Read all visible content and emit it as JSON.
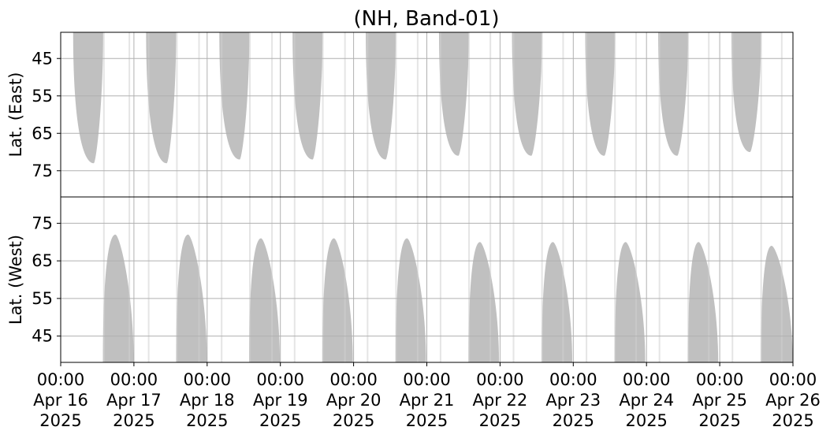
{
  "chart_data": {
    "type": "area",
    "title": "(NH, Band-01)",
    "grid": true,
    "colors": {
      "coverage": "#c0c0c0",
      "grid": "#b0b0b0"
    },
    "x_ticks": [
      {
        "value": "2025-04-16",
        "time": "00:00",
        "day": "Apr 16",
        "year": "2025"
      },
      {
        "value": "2025-04-17",
        "time": "00:00",
        "day": "Apr 17",
        "year": "2025"
      },
      {
        "value": "2025-04-18",
        "time": "00:00",
        "day": "Apr 18",
        "year": "2025"
      },
      {
        "value": "2025-04-19",
        "time": "00:00",
        "day": "Apr 19",
        "year": "2025"
      },
      {
        "value": "2025-04-20",
        "time": "00:00",
        "day": "Apr 20",
        "year": "2025"
      },
      {
        "value": "2025-04-21",
        "time": "00:00",
        "day": "Apr 21",
        "year": "2025"
      },
      {
        "value": "2025-04-22",
        "time": "00:00",
        "day": "Apr 22",
        "year": "2025"
      },
      {
        "value": "2025-04-23",
        "time": "00:00",
        "day": "Apr 23",
        "year": "2025"
      },
      {
        "value": "2025-04-24",
        "time": "00:00",
        "day": "Apr 24",
        "year": "2025"
      },
      {
        "value": "2025-04-25",
        "time": "00:00",
        "day": "Apr 25",
        "year": "2025"
      },
      {
        "value": "2025-04-26",
        "time": "00:00",
        "day": "Apr 26",
        "year": "2025"
      }
    ],
    "xlim": [
      "2025-04-16 00:00",
      "2025-04-26 00:00"
    ],
    "panels": [
      {
        "name": "east",
        "ylabel": "Lat. (East)",
        "ylim": [
          38,
          82
        ],
        "y_inverted": true,
        "yticks": [
          "45",
          "55",
          "65",
          "75"
        ],
        "lobes": [
          {
            "start": "2025-04-16 04:05",
            "end": "2025-04-16 13:55",
            "peak": "2025-04-16 10:50",
            "max_lat": 73
          },
          {
            "start": "2025-04-17 04:00",
            "end": "2025-04-17 13:50",
            "peak": "2025-04-17 10:45",
            "max_lat": 73
          },
          {
            "start": "2025-04-18 04:00",
            "end": "2025-04-18 13:50",
            "peak": "2025-04-18 10:40",
            "max_lat": 72
          },
          {
            "start": "2025-04-19 04:00",
            "end": "2025-04-19 13:50",
            "peak": "2025-04-19 10:35",
            "max_lat": 72
          },
          {
            "start": "2025-04-20 04:00",
            "end": "2025-04-20 13:50",
            "peak": "2025-04-20 10:30",
            "max_lat": 72
          },
          {
            "start": "2025-04-21 04:00",
            "end": "2025-04-21 13:45",
            "peak": "2025-04-21 10:20",
            "max_lat": 71
          },
          {
            "start": "2025-04-22 03:55",
            "end": "2025-04-22 13:45",
            "peak": "2025-04-22 10:15",
            "max_lat": 71
          },
          {
            "start": "2025-04-23 03:55",
            "end": "2025-04-23 13:40",
            "peak": "2025-04-23 10:10",
            "max_lat": 71
          },
          {
            "start": "2025-04-24 03:50",
            "end": "2025-04-24 13:40",
            "peak": "2025-04-24 10:05",
            "max_lat": 71
          },
          {
            "start": "2025-04-25 03:50",
            "end": "2025-04-25 13:35",
            "peak": "2025-04-25 09:55",
            "max_lat": 70
          }
        ]
      },
      {
        "name": "west",
        "ylabel": "Lat. (West)",
        "ylim": [
          38,
          82
        ],
        "y_inverted": false,
        "yticks": [
          "45",
          "55",
          "65",
          "75"
        ],
        "lobes": [
          {
            "start": "2025-04-16 13:50",
            "end": "2025-04-16 23:55",
            "peak": "2025-04-16 17:55",
            "max_lat": 72
          },
          {
            "start": "2025-04-17 13:50",
            "end": "2025-04-17 23:55",
            "peak": "2025-04-17 17:45",
            "max_lat": 72
          },
          {
            "start": "2025-04-18 13:45",
            "end": "2025-04-18 23:50",
            "peak": "2025-04-18 17:40",
            "max_lat": 71
          },
          {
            "start": "2025-04-19 13:45",
            "end": "2025-04-19 23:45",
            "peak": "2025-04-19 17:35",
            "max_lat": 71
          },
          {
            "start": "2025-04-20 13:45",
            "end": "2025-04-20 23:45",
            "peak": "2025-04-20 17:30",
            "max_lat": 71
          },
          {
            "start": "2025-04-21 13:40",
            "end": "2025-04-21 23:40",
            "peak": "2025-04-21 17:25",
            "max_lat": 70
          },
          {
            "start": "2025-04-22 13:40",
            "end": "2025-04-22 23:40",
            "peak": "2025-04-22 17:20",
            "max_lat": 70
          },
          {
            "start": "2025-04-23 13:35",
            "end": "2025-04-23 23:35",
            "peak": "2025-04-23 17:10",
            "max_lat": 70
          },
          {
            "start": "2025-04-24 13:35",
            "end": "2025-04-24 23:30",
            "peak": "2025-04-24 17:05",
            "max_lat": 70
          },
          {
            "start": "2025-04-25 13:30",
            "end": "2025-04-25 23:55",
            "peak": "2025-04-25 17:00",
            "max_lat": 69
          }
        ]
      }
    ],
    "scattered_passes": [
      "2025-04-16 14:10",
      "2025-04-16 22:30",
      "2025-04-17 04:50",
      "2025-04-17 14:05",
      "2025-04-17 21:20",
      "2025-04-18 04:45",
      "2025-04-18 14:00",
      "2025-04-18 21:15",
      "2025-04-19 04:40",
      "2025-04-19 13:55",
      "2025-04-19 21:10",
      "2025-04-20 04:35",
      "2025-04-20 13:55",
      "2025-04-20 21:00",
      "2025-04-21 04:30",
      "2025-04-21 13:50",
      "2025-04-21 20:50",
      "2025-04-22 04:25",
      "2025-04-22 13:45",
      "2025-04-22 20:40",
      "2025-04-23 04:20",
      "2025-04-23 13:40",
      "2025-04-23 20:35",
      "2025-04-24 04:15",
      "2025-04-24 13:40",
      "2025-04-24 20:25",
      "2025-04-25 04:10",
      "2025-04-25 13:35",
      "2025-04-25 20:20"
    ]
  }
}
